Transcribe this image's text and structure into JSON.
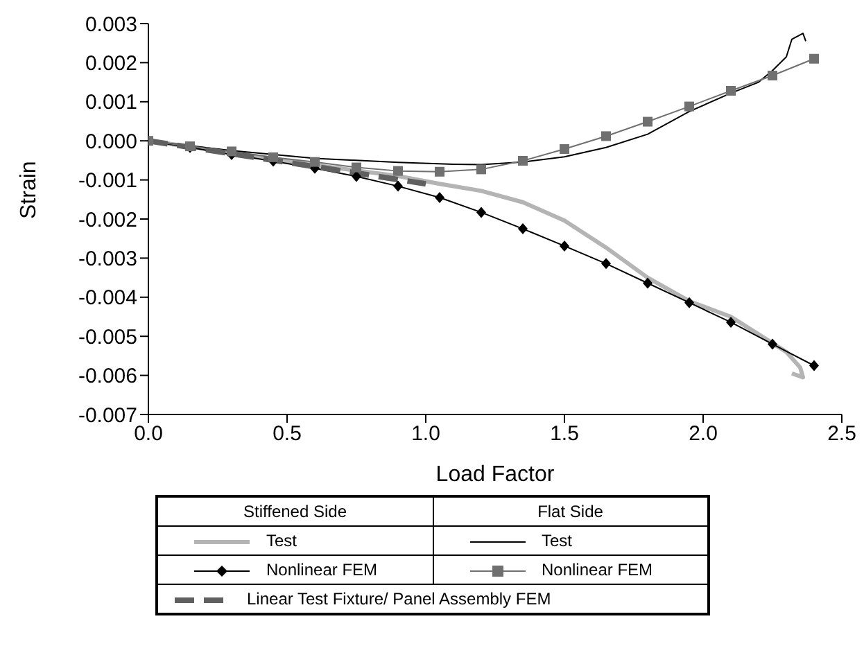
{
  "chart_data": {
    "type": "line",
    "xlabel": "Load Factor",
    "ylabel": "Strain",
    "annotations": [
      "Stiffened Side",
      "Flat Side"
    ],
    "xlim": [
      0,
      2.5
    ],
    "xticks": [
      {
        "value": 0,
        "label": "0.0"
      },
      {
        "value": 0.5,
        "label": "0.5"
      },
      {
        "value": 1,
        "label": "1.0"
      },
      {
        "value": 1.5,
        "label": "1.5"
      },
      {
        "value": 2,
        "label": "2.0"
      },
      {
        "value": 2.5,
        "label": "2.5"
      }
    ],
    "ylim": [
      -0.007,
      0.003
    ],
    "yticks": [
      {
        "value": 0.003,
        "label": "0.003"
      },
      {
        "value": 0.002,
        "label": "0.002"
      },
      {
        "value": 0.001,
        "label": "0.001"
      },
      {
        "value": 0,
        "label": "0.000"
      },
      {
        "value": -0.001,
        "label": "-0.001"
      },
      {
        "value": -0.002,
        "label": "-0.002"
      },
      {
        "value": -0.003,
        "label": "-0.003"
      },
      {
        "value": -0.004,
        "label": "-0.004"
      },
      {
        "value": -0.005,
        "label": "-0.005"
      },
      {
        "value": -0.006,
        "label": "-0.006"
      },
      {
        "value": -0.007,
        "label": "-0.007"
      }
    ],
    "legend": "bottom",
    "series": [
      {
        "name": "Test",
        "color": "#b4b4b4",
        "marker": "none",
        "line_style": "solid",
        "x": [
          0,
          0.3,
          0.6,
          0.9,
          1.05,
          1.2,
          1.35,
          1.5,
          1.65,
          1.8,
          1.95,
          2.1,
          2.2,
          2.3,
          2.35,
          2.36,
          2.32
        ],
        "values": [
          0,
          -0.0003,
          -0.00062,
          -0.0009,
          -0.0011,
          -0.00128,
          -0.00157,
          -0.00204,
          -0.00273,
          -0.0035,
          -0.0041,
          -0.0045,
          -0.00495,
          -0.0054,
          -0.0058,
          -0.00605,
          -0.00595
        ]
      },
      {
        "name": "Test",
        "color": "#000000",
        "marker": "none",
        "line_style": "solid",
        "x": [
          0,
          0.3,
          0.6,
          0.9,
          1.1,
          1.2,
          1.35,
          1.5,
          1.65,
          1.8,
          1.95,
          2.1,
          2.2,
          2.25,
          2.3,
          2.32,
          2.36,
          2.37
        ],
        "values": [
          0,
          -0.00025,
          -0.00045,
          -0.00055,
          -0.0006,
          -0.00061,
          -0.00054,
          -0.00041,
          -0.00017,
          0.00017,
          0.00075,
          0.00122,
          0.0015,
          0.0018,
          0.00215,
          0.0026,
          0.00275,
          0.00255
        ]
      },
      {
        "name": "Nonlinear FEM",
        "color": "#000000",
        "marker": "diamond",
        "line_style": "solid",
        "x": [
          0,
          0.15,
          0.3,
          0.45,
          0.6,
          0.75,
          0.9,
          1.05,
          1.2,
          1.35,
          1.5,
          1.65,
          1.8,
          1.95,
          2.1,
          2.25,
          2.4
        ],
        "values": [
          0,
          -0.00017,
          -0.00035,
          -0.00052,
          -0.0007,
          -0.00091,
          -0.00116,
          -0.00145,
          -0.00183,
          -0.00225,
          -0.00269,
          -0.00314,
          -0.00364,
          -0.00414,
          -0.00464,
          -0.0052,
          -0.00575
        ]
      },
      {
        "name": "Nonlinear FEM",
        "color": "#707070",
        "marker": "square",
        "line_style": "solid",
        "x": [
          0,
          0.15,
          0.3,
          0.45,
          0.6,
          0.75,
          0.9,
          1.05,
          1.2,
          1.35,
          1.5,
          1.65,
          1.8,
          1.95,
          2.1,
          2.25,
          2.4
        ],
        "values": [
          0,
          -0.00014,
          -0.00027,
          -0.00042,
          -0.00054,
          -0.00068,
          -0.00077,
          -0.00079,
          -0.00073,
          -0.00051,
          -0.00021,
          0.00012,
          0.00049,
          0.00088,
          0.00128,
          0.00167,
          0.0021
        ]
      },
      {
        "name": "Linear Test Fixture/ Panel Assembly FEM",
        "color": "#606060",
        "marker": "none",
        "line_style": "dashed",
        "x": [
          0,
          1.0
        ],
        "values": [
          0,
          -0.0011
        ]
      }
    ]
  }
}
